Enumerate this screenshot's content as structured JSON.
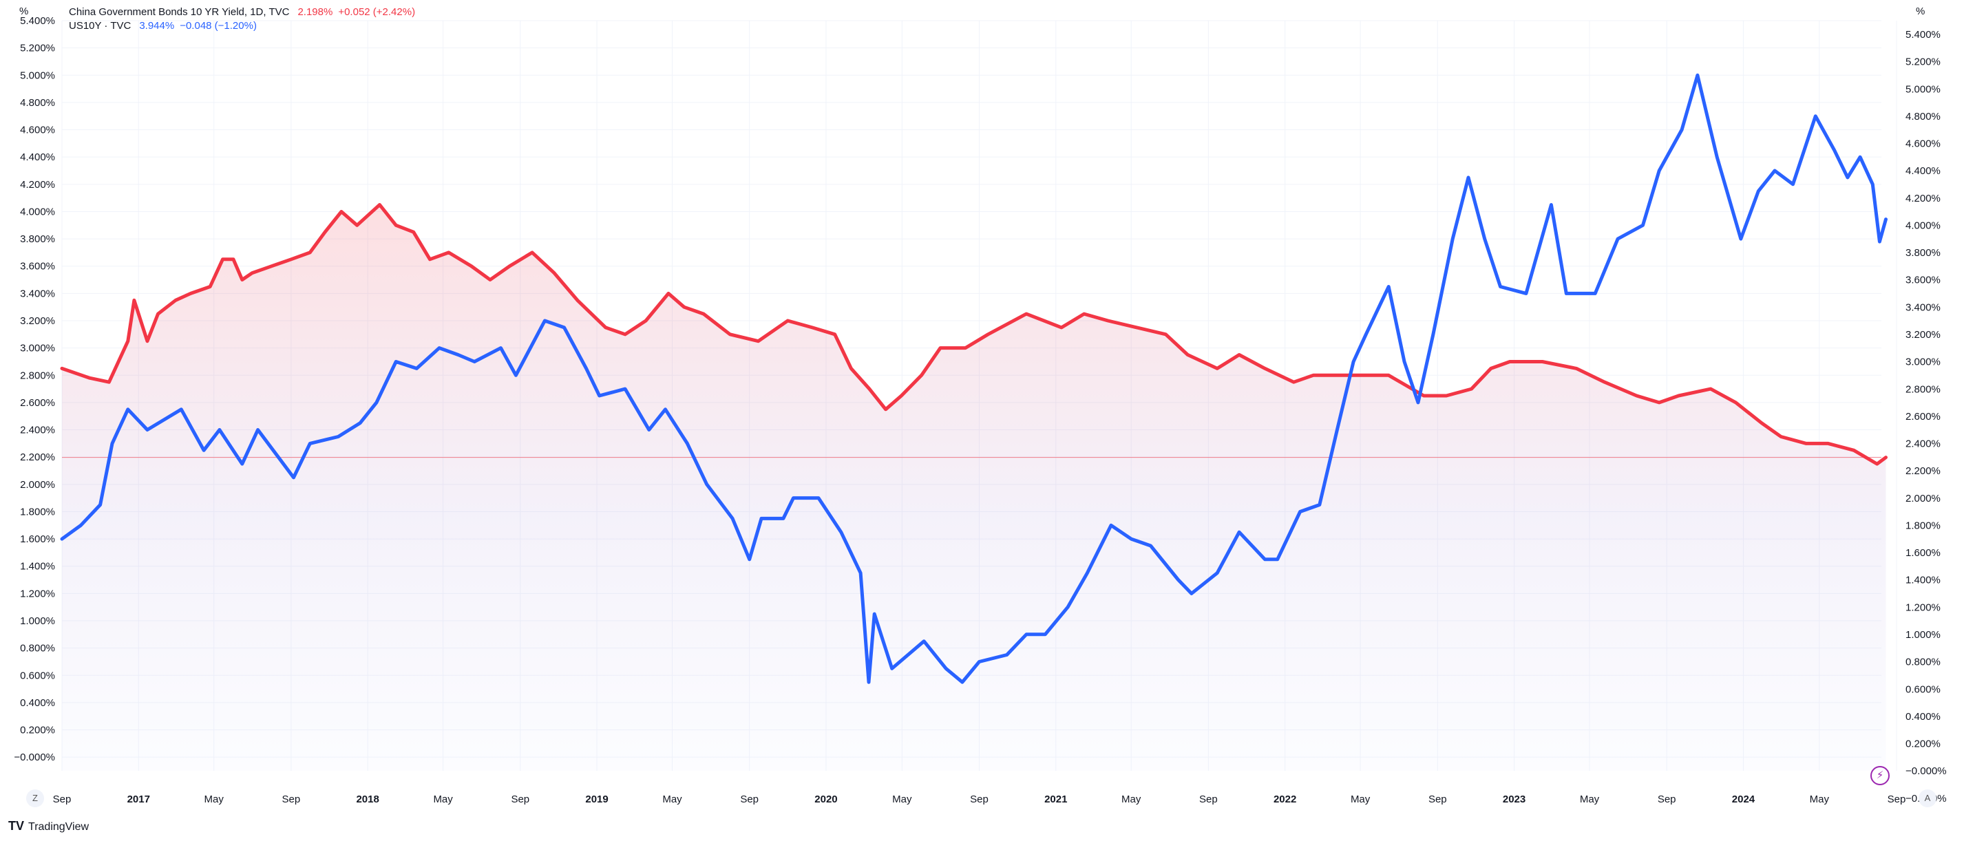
{
  "legend": {
    "series1": {
      "symbol": "China Government Bonds 10 YR Yield, 1D, TVC",
      "last": "2.198%",
      "change": "+0.052 (+2.42%)"
    },
    "series2": {
      "symbol": "US10Y · TVC",
      "last": "3.944%",
      "change": "−0.048 (−1.20%)"
    }
  },
  "axis_unit": "%",
  "corner_left": "Z",
  "corner_right": "A",
  "branding": "TradingView",
  "colors": {
    "china": "#f23645",
    "us": "#2962ff",
    "grid": "#f0f3fa",
    "axis_text": "#131722"
  },
  "chart_data": {
    "type": "line",
    "x_range": [
      "2016-09",
      "2024-09"
    ],
    "ylim": [
      -0.1,
      5.4
    ],
    "grid": true,
    "y_tick_labels_left": [
      "5.400%",
      "5.200%",
      "5.000%",
      "4.800%",
      "4.600%",
      "4.400%",
      "4.200%",
      "4.000%",
      "3.800%",
      "3.600%",
      "3.400%",
      "3.200%",
      "3.000%",
      "2.800%",
      "2.600%",
      "2.400%",
      "2.200%",
      "2.000%",
      "1.800%",
      "1.600%",
      "1.400%",
      "1.200%",
      "1.000%",
      "0.800%",
      "0.600%",
      "0.400%",
      "0.200%",
      "−0.000%"
    ],
    "y_tick_labels_right": [
      "5.400%",
      "5.200%",
      "5.000%",
      "4.800%",
      "4.600%",
      "4.400%",
      "4.200%",
      "4.000%",
      "3.800%",
      "3.600%",
      "3.400%",
      "3.200%",
      "3.000%",
      "2.800%",
      "2.600%",
      "2.400%",
      "2.200%",
      "2.000%",
      "1.800%",
      "1.600%",
      "1.400%",
      "1.200%",
      "1.000%",
      "0.800%",
      "0.600%",
      "0.400%",
      "0.200%",
      "−0.000%",
      "−0.200%"
    ],
    "x_ticks": [
      {
        "label": "Sep",
        "date": "2016-09"
      },
      {
        "label": "2017",
        "date": "2017-01"
      },
      {
        "label": "May",
        "date": "2017-05"
      },
      {
        "label": "Sep",
        "date": "2017-09"
      },
      {
        "label": "2018",
        "date": "2018-01"
      },
      {
        "label": "May",
        "date": "2018-05"
      },
      {
        "label": "Sep",
        "date": "2018-09"
      },
      {
        "label": "2019",
        "date": "2019-01"
      },
      {
        "label": "May",
        "date": "2019-05"
      },
      {
        "label": "Sep",
        "date": "2019-09"
      },
      {
        "label": "2020",
        "date": "2020-01"
      },
      {
        "label": "May",
        "date": "2020-05"
      },
      {
        "label": "Sep",
        "date": "2020-09"
      },
      {
        "label": "2021",
        "date": "2021-01"
      },
      {
        "label": "May",
        "date": "2021-05"
      },
      {
        "label": "Sep",
        "date": "2021-09"
      },
      {
        "label": "2022",
        "date": "2022-01"
      },
      {
        "label": "May",
        "date": "2022-05"
      },
      {
        "label": "Sep",
        "date": "2022-09"
      },
      {
        "label": "2023",
        "date": "2023-01"
      },
      {
        "label": "May",
        "date": "2023-05"
      },
      {
        "label": "Sep",
        "date": "2023-09"
      },
      {
        "label": "2024",
        "date": "2024-01"
      },
      {
        "label": "May",
        "date": "2024-05"
      },
      {
        "label": "Sep",
        "date": "2024-09"
      }
    ],
    "series": [
      {
        "name": "China Government Bonds 10 YR Yield, 1D, TVC",
        "color": "#f23645",
        "area_fill": true,
        "last_value": 2.198,
        "points": [
          [
            "2016-09-01",
            2.85
          ],
          [
            "2016-10-15",
            2.78
          ],
          [
            "2016-11-15",
            2.75
          ],
          [
            "2016-12-15",
            3.05
          ],
          [
            "2016-12-25",
            3.35
          ],
          [
            "2017-01-15",
            3.05
          ],
          [
            "2017-02-01",
            3.25
          ],
          [
            "2017-03-01",
            3.35
          ],
          [
            "2017-03-25",
            3.4
          ],
          [
            "2017-04-25",
            3.45
          ],
          [
            "2017-05-15",
            3.65
          ],
          [
            "2017-06-01",
            3.65
          ],
          [
            "2017-06-15",
            3.5
          ],
          [
            "2017-07-01",
            3.55
          ],
          [
            "2017-08-01",
            3.6
          ],
          [
            "2017-09-01",
            3.65
          ],
          [
            "2017-10-01",
            3.7
          ],
          [
            "2017-10-25",
            3.85
          ],
          [
            "2017-11-20",
            4.0
          ],
          [
            "2017-12-15",
            3.9
          ],
          [
            "2018-01-20",
            4.05
          ],
          [
            "2018-02-15",
            3.9
          ],
          [
            "2018-03-15",
            3.85
          ],
          [
            "2018-04-10",
            3.65
          ],
          [
            "2018-05-10",
            3.7
          ],
          [
            "2018-06-15",
            3.6
          ],
          [
            "2018-07-15",
            3.5
          ],
          [
            "2018-08-15",
            3.6
          ],
          [
            "2018-09-20",
            3.7
          ],
          [
            "2018-10-25",
            3.55
          ],
          [
            "2018-12-01",
            3.35
          ],
          [
            "2019-01-15",
            3.15
          ],
          [
            "2019-02-15",
            3.1
          ],
          [
            "2019-03-20",
            3.2
          ],
          [
            "2019-04-25",
            3.4
          ],
          [
            "2019-05-20",
            3.3
          ],
          [
            "2019-06-20",
            3.25
          ],
          [
            "2019-08-01",
            3.1
          ],
          [
            "2019-09-15",
            3.05
          ],
          [
            "2019-11-01",
            3.2
          ],
          [
            "2019-12-10",
            3.15
          ],
          [
            "2020-01-15",
            3.1
          ],
          [
            "2020-02-10",
            2.85
          ],
          [
            "2020-03-10",
            2.7
          ],
          [
            "2020-04-05",
            2.55
          ],
          [
            "2020-04-30",
            2.65
          ],
          [
            "2020-06-01",
            2.8
          ],
          [
            "2020-07-01",
            3.0
          ],
          [
            "2020-08-10",
            3.0
          ],
          [
            "2020-09-15",
            3.1
          ],
          [
            "2020-11-15",
            3.25
          ],
          [
            "2021-01-10",
            3.15
          ],
          [
            "2021-02-15",
            3.25
          ],
          [
            "2021-03-25",
            3.2
          ],
          [
            "2021-05-10",
            3.15
          ],
          [
            "2021-06-25",
            3.1
          ],
          [
            "2021-07-30",
            2.95
          ],
          [
            "2021-09-15",
            2.85
          ],
          [
            "2021-10-20",
            2.95
          ],
          [
            "2021-11-30",
            2.85
          ],
          [
            "2022-01-15",
            2.75
          ],
          [
            "2022-02-15",
            2.8
          ],
          [
            "2022-04-15",
            2.8
          ],
          [
            "2022-06-15",
            2.8
          ],
          [
            "2022-08-10",
            2.65
          ],
          [
            "2022-09-15",
            2.65
          ],
          [
            "2022-10-25",
            2.7
          ],
          [
            "2022-11-25",
            2.85
          ],
          [
            "2022-12-25",
            2.9
          ],
          [
            "2023-02-15",
            2.9
          ],
          [
            "2023-04-10",
            2.85
          ],
          [
            "2023-05-25",
            2.75
          ],
          [
            "2023-07-15",
            2.65
          ],
          [
            "2023-08-20",
            2.6
          ],
          [
            "2023-09-20",
            2.65
          ],
          [
            "2023-11-10",
            2.7
          ],
          [
            "2023-12-20",
            2.6
          ],
          [
            "2024-01-30",
            2.45
          ],
          [
            "2024-03-01",
            2.35
          ],
          [
            "2024-04-10",
            2.3
          ],
          [
            "2024-05-15",
            2.3
          ],
          [
            "2024-06-25",
            2.25
          ],
          [
            "2024-08-01",
            2.15
          ],
          [
            "2024-08-15",
            2.198
          ]
        ]
      },
      {
        "name": "US10Y · TVC",
        "color": "#2962ff",
        "area_fill": false,
        "last_value": 3.944,
        "points": [
          [
            "2016-09-01",
            1.6
          ],
          [
            "2016-10-01",
            1.7
          ],
          [
            "2016-11-01",
            1.85
          ],
          [
            "2016-11-20",
            2.3
          ],
          [
            "2016-12-15",
            2.55
          ],
          [
            "2017-01-15",
            2.4
          ],
          [
            "2017-03-10",
            2.55
          ],
          [
            "2017-04-15",
            2.25
          ],
          [
            "2017-05-10",
            2.4
          ],
          [
            "2017-06-15",
            2.15
          ],
          [
            "2017-07-10",
            2.4
          ],
          [
            "2017-09-05",
            2.05
          ],
          [
            "2017-10-01",
            2.3
          ],
          [
            "2017-11-15",
            2.35
          ],
          [
            "2017-12-20",
            2.45
          ],
          [
            "2018-01-15",
            2.6
          ],
          [
            "2018-02-15",
            2.9
          ],
          [
            "2018-03-20",
            2.85
          ],
          [
            "2018-04-25",
            3.0
          ],
          [
            "2018-05-25",
            2.95
          ],
          [
            "2018-06-20",
            2.9
          ],
          [
            "2018-08-01",
            3.0
          ],
          [
            "2018-08-25",
            2.8
          ],
          [
            "2018-10-10",
            3.2
          ],
          [
            "2018-11-10",
            3.15
          ],
          [
            "2018-12-15",
            2.85
          ],
          [
            "2019-01-05",
            2.65
          ],
          [
            "2019-02-15",
            2.7
          ],
          [
            "2019-03-25",
            2.4
          ],
          [
            "2019-04-20",
            2.55
          ],
          [
            "2019-05-25",
            2.3
          ],
          [
            "2019-06-25",
            2.0
          ],
          [
            "2019-08-05",
            1.75
          ],
          [
            "2019-09-01",
            1.45
          ],
          [
            "2019-09-20",
            1.75
          ],
          [
            "2019-10-25",
            1.75
          ],
          [
            "2019-11-10",
            1.9
          ],
          [
            "2019-12-20",
            1.9
          ],
          [
            "2020-01-25",
            1.65
          ],
          [
            "2020-02-25",
            1.35
          ],
          [
            "2020-03-09",
            0.55
          ],
          [
            "2020-03-18",
            1.05
          ],
          [
            "2020-04-15",
            0.65
          ],
          [
            "2020-06-05",
            0.85
          ],
          [
            "2020-07-10",
            0.65
          ],
          [
            "2020-08-05",
            0.55
          ],
          [
            "2020-09-01",
            0.7
          ],
          [
            "2020-10-15",
            0.75
          ],
          [
            "2020-11-15",
            0.9
          ],
          [
            "2020-12-15",
            0.9
          ],
          [
            "2021-01-20",
            1.1
          ],
          [
            "2021-02-20",
            1.35
          ],
          [
            "2021-03-30",
            1.7
          ],
          [
            "2021-05-01",
            1.6
          ],
          [
            "2021-06-01",
            1.55
          ],
          [
            "2021-07-15",
            1.3
          ],
          [
            "2021-08-05",
            1.2
          ],
          [
            "2021-09-15",
            1.35
          ],
          [
            "2021-10-20",
            1.65
          ],
          [
            "2021-11-30",
            1.45
          ],
          [
            "2021-12-20",
            1.45
          ],
          [
            "2022-01-25",
            1.8
          ],
          [
            "2022-02-25",
            1.85
          ],
          [
            "2022-03-25",
            2.4
          ],
          [
            "2022-04-20",
            2.9
          ],
          [
            "2022-05-10",
            3.1
          ],
          [
            "2022-06-15",
            3.45
          ],
          [
            "2022-07-10",
            2.9
          ],
          [
            "2022-08-01",
            2.6
          ],
          [
            "2022-08-25",
            3.1
          ],
          [
            "2022-09-25",
            3.8
          ],
          [
            "2022-10-20",
            4.25
          ],
          [
            "2022-11-15",
            3.8
          ],
          [
            "2022-12-10",
            3.45
          ],
          [
            "2023-01-20",
            3.4
          ],
          [
            "2023-03-01",
            4.05
          ],
          [
            "2023-03-25",
            3.4
          ],
          [
            "2023-05-10",
            3.4
          ],
          [
            "2023-06-15",
            3.8
          ],
          [
            "2023-07-25",
            3.9
          ],
          [
            "2023-08-20",
            4.3
          ],
          [
            "2023-09-25",
            4.6
          ],
          [
            "2023-10-20",
            5.0
          ],
          [
            "2023-11-20",
            4.4
          ],
          [
            "2023-12-28",
            3.8
          ],
          [
            "2024-01-25",
            4.15
          ],
          [
            "2024-02-20",
            4.3
          ],
          [
            "2024-03-20",
            4.2
          ],
          [
            "2024-04-25",
            4.7
          ],
          [
            "2024-05-25",
            4.45
          ],
          [
            "2024-06-15",
            4.25
          ],
          [
            "2024-07-05",
            4.4
          ],
          [
            "2024-07-25",
            4.2
          ],
          [
            "2024-08-05",
            3.78
          ],
          [
            "2024-08-15",
            3.944
          ]
        ]
      }
    ],
    "markers": [
      {
        "type": "horizontal-line",
        "value": 2.198,
        "color": "#f23645"
      }
    ]
  }
}
